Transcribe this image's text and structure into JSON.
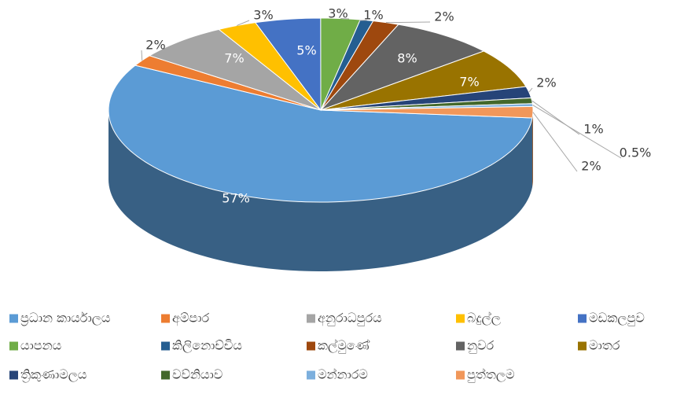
{
  "chart_data": {
    "type": "pie3d",
    "categories": [
      "ප්‍රධාන කාර්යාලය",
      "අම්පාර",
      "අනුරාධපුරය",
      "බදුල්ල",
      "මඩකලපුව",
      "යාපනය",
      "කිලිනොච්චිය",
      "කල්මුණේ",
      "නුවර",
      "මාතර",
      "ත්‍රිකුණාමලය",
      "වව්නියාව",
      "මන්නාරම",
      "පුත්තලම"
    ],
    "values": [
      57,
      2,
      7,
      3,
      5,
      3,
      1,
      2,
      8,
      7,
      2,
      1,
      0.5,
      2
    ],
    "value_labels": [
      "57%",
      "2%",
      "7%",
      "3%",
      "5%",
      "3%",
      "1%",
      "2%",
      "8%",
      "7%",
      "2%",
      "1%",
      "0.5%",
      "2%"
    ],
    "colors": [
      "#5b9bd5",
      "#ed7d31",
      "#a5a5a5",
      "#ffc000",
      "#4472c4",
      "#70ad47",
      "#255e91",
      "#9e480e",
      "#636363",
      "#997300",
      "#264478",
      "#43682b",
      "#7cafdd",
      "#f1975a"
    ],
    "legend": "bottom"
  }
}
